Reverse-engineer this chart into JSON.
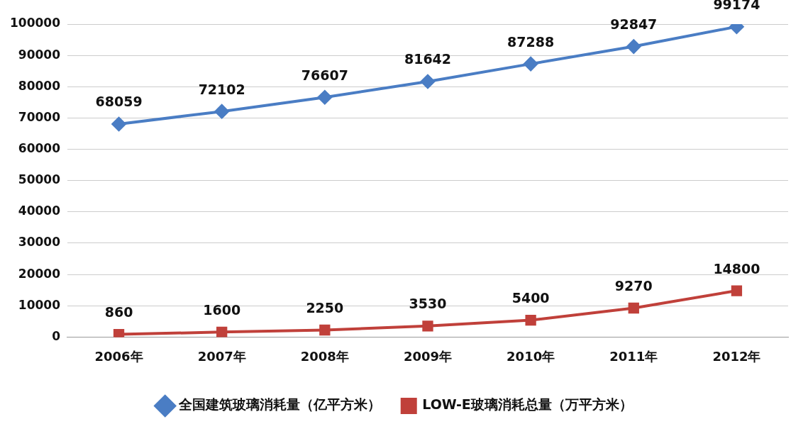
{
  "chart_data": {
    "type": "line",
    "categories": [
      "2006年",
      "2007年",
      "2008年",
      "2009年",
      "2010年",
      "2011年",
      "2012年"
    ],
    "series": [
      {
        "name": "全国建筑玻璃消耗量（亿平方米）",
        "color": "#4a7dc4",
        "marker": "diamond",
        "values": [
          68059,
          72102,
          76607,
          81642,
          87288,
          92847,
          99174
        ]
      },
      {
        "name": "LOW-E玻璃消耗总量（万平方米）",
        "color": "#c0403a",
        "marker": "square",
        "values": [
          860,
          1600,
          2250,
          3530,
          5400,
          9270,
          14800
        ]
      }
    ],
    "ylim": [
      0,
      100000
    ],
    "yticks": [
      0,
      10000,
      20000,
      30000,
      40000,
      50000,
      60000,
      70000,
      80000,
      90000,
      100000
    ],
    "grid": "y",
    "legend": "bottom",
    "data_labels": true,
    "line_style": "solid"
  }
}
